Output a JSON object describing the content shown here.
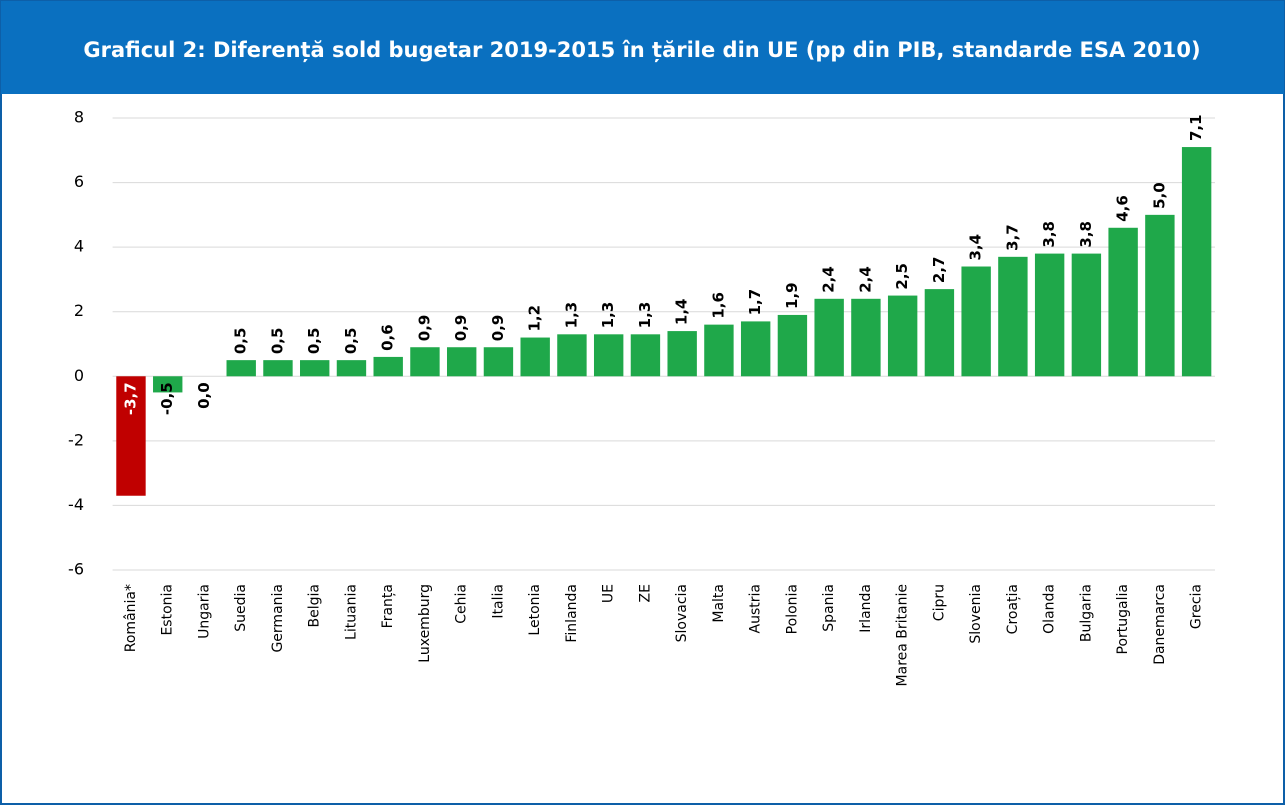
{
  "chart_data": {
    "type": "bar",
    "title": "Graficul 2: Diferență sold bugetar 2019-2015 în țările din UE (pp din PIB, standarde ESA 2010)",
    "categories": [
      "România*",
      "Estonia",
      "Ungaria",
      "Suedia",
      "Germania",
      "Belgia",
      "Lituania",
      "Franța",
      "Luxemburg",
      "Cehia",
      "Italia",
      "Letonia",
      "Finlanda",
      "UE",
      "ZE",
      "Slovacia",
      "Malta",
      "Austria",
      "Polonia",
      "Spania",
      "Irlanda",
      "Marea Britanie",
      "Cipru",
      "Slovenia",
      "Croația",
      "Olanda",
      "Bulgaria",
      "Portugalia",
      "Danemarca",
      "Grecia"
    ],
    "values": [
      -3.7,
      -0.5,
      0.0,
      0.5,
      0.5,
      0.5,
      0.5,
      0.6,
      0.9,
      0.9,
      0.9,
      1.2,
      1.3,
      1.3,
      1.3,
      1.4,
      1.6,
      1.7,
      1.9,
      2.4,
      2.4,
      2.5,
      2.7,
      3.4,
      3.7,
      3.8,
      3.8,
      4.6,
      5.0,
      7.1
    ],
    "value_labels": [
      "-3,7",
      "-0,5",
      "0,0",
      "0,5",
      "0,5",
      "0,5",
      "0,5",
      "0,6",
      "0,9",
      "0,9",
      "0,9",
      "1,2",
      "1,3",
      "1,3",
      "1,3",
      "1,4",
      "1,6",
      "1,7",
      "1,9",
      "2,4",
      "2,4",
      "2,5",
      "2,7",
      "3,4",
      "3,7",
      "3,8",
      "3,8",
      "4,6",
      "5,0",
      "7,1"
    ],
    "colors": [
      "#c00000",
      "#1fa84a",
      "#1fa84a",
      "#1fa84a",
      "#1fa84a",
      "#1fa84a",
      "#1fa84a",
      "#1fa84a",
      "#1fa84a",
      "#1fa84a",
      "#1fa84a",
      "#1fa84a",
      "#1fa84a",
      "#1fa84a",
      "#1fa84a",
      "#1fa84a",
      "#1fa84a",
      "#1fa84a",
      "#1fa84a",
      "#1fa84a",
      "#1fa84a",
      "#1fa84a",
      "#1fa84a",
      "#1fa84a",
      "#1fa84a",
      "#1fa84a",
      "#1fa84a",
      "#1fa84a",
      "#1fa84a",
      "#1fa84a"
    ],
    "ylim": [
      -6,
      8
    ],
    "yticks": [
      -6,
      -4,
      -2,
      0,
      2,
      4,
      6,
      8
    ],
    "grid": true
  }
}
